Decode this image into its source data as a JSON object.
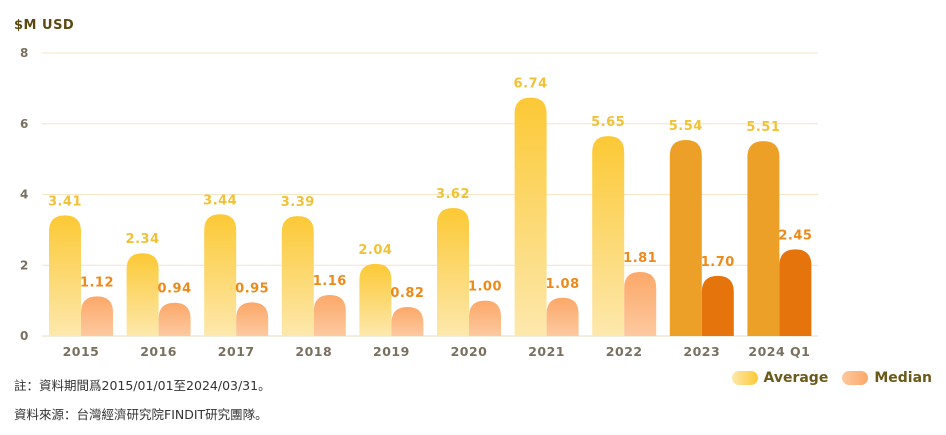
{
  "chart_data": {
    "type": "bar",
    "unit_label": "$M USD",
    "categories": [
      "2015",
      "2016",
      "2017",
      "2018",
      "2019",
      "2020",
      "2021",
      "2022",
      "2023",
      "2024 Q1"
    ],
    "y_ticks": [
      "0",
      "2",
      "4",
      "6",
      "8"
    ],
    "ylim": [
      0,
      8
    ],
    "grid": true,
    "series": [
      {
        "name": "Average",
        "values": [
          3.41,
          2.34,
          3.44,
          3.39,
          2.04,
          3.62,
          6.74,
          5.65,
          5.54,
          5.51
        ],
        "labels": [
          "3.41",
          "2.34",
          "3.44",
          "3.39",
          "2.04",
          "3.62",
          "6.74",
          "5.65",
          "5.54",
          "5.51"
        ]
      },
      {
        "name": "Median",
        "values": [
          1.12,
          0.94,
          0.95,
          1.16,
          0.82,
          1.0,
          1.08,
          1.81,
          1.7,
          2.45
        ],
        "labels": [
          "1.12",
          "0.94",
          "0.95",
          "1.16",
          "0.82",
          "1.00",
          "1.08",
          "1.81",
          "1.70",
          "2.45"
        ]
      }
    ],
    "legend_position": "bottom-right",
    "colors": {
      "average_top": "#fcc935",
      "average_bottom": "#fde8ad",
      "average_dark": "#eda028",
      "median_top": "#fca868",
      "median_bottom": "#fdc9a0",
      "median_dark": "#e5740d",
      "average_label": "#f0c237",
      "median_label": "#ec8a1a",
      "axis_text": "#7a7060",
      "grid": "#f4e6c6"
    }
  },
  "notes": {
    "line1": "註：資料期間爲2015/01/01至2024/03/31。",
    "line2": "資料來源：台灣經濟研究院FINDIT研究團隊。"
  },
  "legend": {
    "average": "Average",
    "median": "Median"
  }
}
